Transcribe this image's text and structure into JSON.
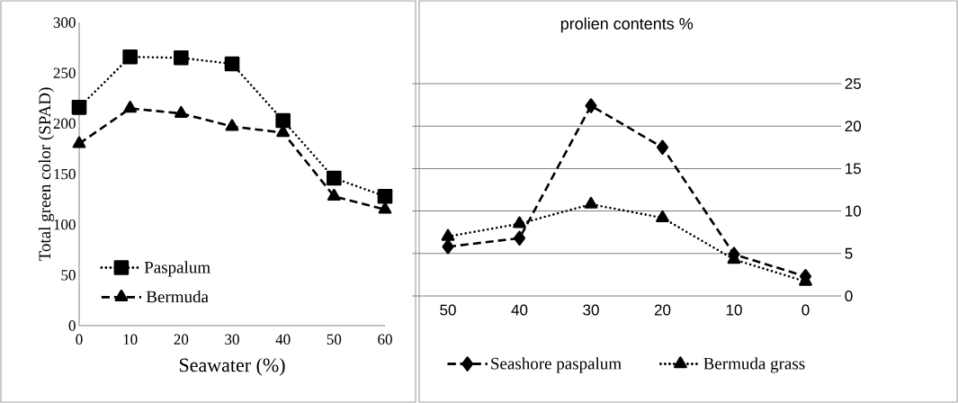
{
  "chart_data": [
    {
      "type": "line",
      "xlabel": "Seawater (%)",
      "ylabel": "Total green color (SPAD)",
      "categories": [
        "0",
        "10",
        "20",
        "30",
        "40",
        "50",
        "60"
      ],
      "ylim": [
        0,
        300
      ],
      "yticks": [
        0,
        50,
        100,
        150,
        200,
        250,
        300
      ],
      "grid": false,
      "legend": "bottom left",
      "series": [
        {
          "name": "Paspalum",
          "color": "#000000",
          "marker": "square",
          "line_style": "dotted",
          "values": [
            216,
            266,
            265,
            259,
            203,
            146,
            128
          ]
        },
        {
          "name": "Bermuda",
          "color": "#000000",
          "marker": "triangle",
          "line_style": "dashed",
          "values": [
            180,
            215,
            210,
            197,
            191,
            128,
            115
          ]
        }
      ]
    },
    {
      "type": "line",
      "title": "prolien contents %",
      "categories": [
        "50",
        "40",
        "30",
        "20",
        "10",
        "0"
      ],
      "ylim": [
        0,
        25
      ],
      "yticks": [
        0,
        5,
        10,
        15,
        20,
        25
      ],
      "grid": "y",
      "legend": "bottom",
      "series": [
        {
          "name": "Seashore paspalum",
          "color": "#000000",
          "marker": "diamond",
          "line_style": "dashed",
          "values": [
            5.8,
            6.8,
            22.4,
            17.5,
            4.9,
            2.3
          ]
        },
        {
          "name": "Bermuda grass",
          "color": "#000000",
          "marker": "triangle",
          "line_style": "dotted",
          "values": [
            7.0,
            8.5,
            10.8,
            9.2,
            4.3,
            1.7
          ]
        }
      ]
    }
  ]
}
